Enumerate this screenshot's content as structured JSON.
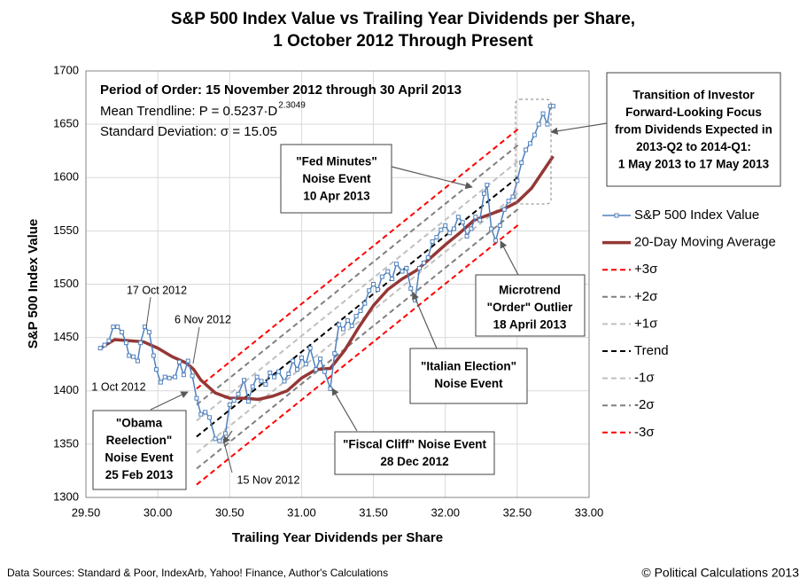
{
  "chart_data": {
    "type": "line",
    "title": [
      "S&P 500 Index Value vs Trailing Year Dividends per Share,",
      "1 October 2012 Through Present"
    ],
    "x_label": "Trailing Year Dividends per Share",
    "y_label": "S&P 500 Index Value",
    "xlim": [
      29.5,
      33.0
    ],
    "xticks": [
      {
        "value": 29.5,
        "label": "29.50"
      },
      {
        "value": 30.0,
        "label": "30.00"
      },
      {
        "value": 30.5,
        "label": "30.50"
      },
      {
        "value": 31.0,
        "label": "31.00"
      },
      {
        "value": 31.5,
        "label": "31.50"
      },
      {
        "value": 32.0,
        "label": "32.00"
      },
      {
        "value": 32.5,
        "label": "32.50"
      },
      {
        "value": 33.0,
        "label": "33.00"
      }
    ],
    "ylim": [
      1300,
      1700
    ],
    "yticks": [
      1300,
      1350,
      1400,
      1450,
      1500,
      1550,
      1600,
      1650,
      1700
    ],
    "grid": true,
    "legend": "right",
    "series": [
      {
        "name": "S&P 500 Index Value",
        "color": "#4f81bd",
        "style": "markers",
        "x": [
          29.6,
          29.63,
          29.66,
          29.69,
          29.72,
          29.75,
          29.78,
          29.8,
          29.83,
          29.86,
          29.88,
          29.91,
          29.94,
          29.97,
          29.99,
          30.02,
          30.05,
          30.08,
          30.12,
          30.15,
          30.18,
          30.21,
          30.24,
          30.27,
          30.3,
          30.33,
          30.36,
          30.4,
          30.43,
          30.47,
          30.5,
          30.53,
          30.56,
          30.6,
          30.63,
          30.66,
          30.69,
          30.72,
          30.75,
          30.78,
          30.81,
          30.84,
          30.88,
          30.91,
          30.94,
          30.97,
          31.0,
          31.03,
          31.06,
          31.1,
          31.13,
          31.16,
          31.2,
          31.23,
          31.26,
          31.29,
          31.32,
          31.35,
          31.38,
          31.41,
          31.44,
          31.47,
          31.5,
          31.53,
          31.56,
          31.6,
          31.63,
          31.66,
          31.7,
          31.73,
          31.76,
          31.79,
          31.82,
          31.85,
          31.88,
          31.91,
          31.94,
          31.97,
          32.0,
          32.03,
          32.06,
          32.09,
          32.12,
          32.15,
          32.18,
          32.21,
          32.24,
          32.27,
          32.29,
          32.32,
          32.35,
          32.38,
          32.41,
          32.44,
          32.47,
          32.5,
          32.53,
          32.56,
          32.59,
          32.62,
          32.65,
          32.68,
          32.71,
          32.73,
          32.75
        ],
        "values": [
          1440,
          1443,
          1447,
          1460,
          1460,
          1455,
          1445,
          1433,
          1432,
          1428,
          1445,
          1460,
          1455,
          1433,
          1420,
          1408,
          1413,
          1412,
          1413,
          1427,
          1415,
          1428,
          1414,
          1393,
          1378,
          1380,
          1375,
          1355,
          1353,
          1360,
          1387,
          1391,
          1397,
          1410,
          1390,
          1404,
          1413,
          1409,
          1406,
          1417,
          1413,
          1418,
          1409,
          1416,
          1428,
          1420,
          1431,
          1425,
          1440,
          1420,
          1430,
          1418,
          1402,
          1435,
          1462,
          1458,
          1466,
          1461,
          1470,
          1475,
          1482,
          1494,
          1500,
          1495,
          1507,
          1512,
          1505,
          1519,
          1512,
          1515,
          1496,
          1485,
          1515,
          1520,
          1525,
          1540,
          1544,
          1551,
          1555,
          1548,
          1552,
          1563,
          1558,
          1545,
          1552,
          1563,
          1560,
          1585,
          1593,
          1552,
          1541,
          1555,
          1570,
          1578,
          1582,
          1597,
          1614,
          1626,
          1632,
          1640,
          1650,
          1660,
          1650,
          1667,
          1667
        ]
      },
      {
        "name": "20-Day Moving Average",
        "color": "#953735",
        "style": "thick",
        "x": [
          29.6,
          29.7,
          29.8,
          29.9,
          30.0,
          30.1,
          30.2,
          30.25,
          30.3,
          30.4,
          30.5,
          30.6,
          30.7,
          30.8,
          30.9,
          31.0,
          31.1,
          31.2,
          31.3,
          31.4,
          31.5,
          31.6,
          31.7,
          31.8,
          31.9,
          32.0,
          32.1,
          32.2,
          32.3,
          32.4,
          32.5,
          32.6,
          32.7,
          32.75
        ],
        "values": [
          1440,
          1448,
          1447,
          1446,
          1440,
          1432,
          1426,
          1420,
          1410,
          1398,
          1393,
          1393,
          1392,
          1395,
          1400,
          1412,
          1420,
          1421,
          1438,
          1460,
          1480,
          1495,
          1505,
          1513,
          1525,
          1537,
          1548,
          1560,
          1565,
          1570,
          1577,
          1590,
          1610,
          1620
        ]
      },
      {
        "name": "+3σ",
        "color": "#ff0000",
        "style": "dash",
        "x": [
          30.27,
          32.52
        ],
        "values": [
          1402,
          1647
        ]
      },
      {
        "name": "+2σ",
        "color": "#808080",
        "style": "dash",
        "x": [
          30.27,
          32.52
        ],
        "values": [
          1387,
          1632
        ]
      },
      {
        "name": "+1σ",
        "color": "#c0c0c0",
        "style": "dash",
        "x": [
          30.27,
          32.52
        ],
        "values": [
          1372,
          1617
        ]
      },
      {
        "name": "Trend",
        "color": "#000000",
        "style": "dash",
        "x": [
          30.27,
          32.52
        ],
        "values": [
          1357,
          1602
        ]
      },
      {
        "name": "-1σ",
        "color": "#c0c0c0",
        "style": "dash",
        "x": [
          30.27,
          32.52
        ],
        "values": [
          1342,
          1587
        ]
      },
      {
        "name": "-2σ",
        "color": "#808080",
        "style": "dash",
        "x": [
          30.27,
          32.52
        ],
        "values": [
          1327,
          1572
        ]
      },
      {
        "name": "-3σ",
        "color": "#ff0000",
        "style": "dash",
        "x": [
          30.27,
          32.52
        ],
        "values": [
          1312,
          1557
        ]
      }
    ],
    "info": {
      "order": "Period of Order: 15 November 2012 through 30 April 2013",
      "trendline": "Mean Trendline: P = 0.5237·D",
      "exponent": "2.3049",
      "deviation": "Standard Deviation: σ = 15.05"
    },
    "annotations": [
      [
        "1 Oct 2012"
      ],
      [
        "17 Oct 2012"
      ],
      [
        "6 Nov 2012"
      ],
      [
        "15 Nov 2012"
      ],
      [
        "\"Obama",
        "Reelection\"",
        "Noise Event",
        "25 Feb 2013"
      ],
      [
        "\"Fiscal Cliff\" Noise Event",
        "28 Dec 2012"
      ],
      [
        "\"Italian Election\"",
        "Noise Event"
      ],
      [
        "\"Fed Minutes\"",
        "Noise Event",
        "10 Apr 2013"
      ],
      [
        "Microtrend",
        "\"Order\" Outlier",
        "18 April 2013"
      ],
      [
        "Transition of Investor",
        "Forward-Looking Focus",
        "from Dividends Expected in",
        "2013-Q2 to 2014-Q1:",
        "1 May 2013 to 17 May 2013"
      ]
    ],
    "source": "Data Sources: Standard & Poor, IndexArb, Yahoo! Finance, Author's Calculations",
    "copyright": "© Political Calculations 2013"
  }
}
